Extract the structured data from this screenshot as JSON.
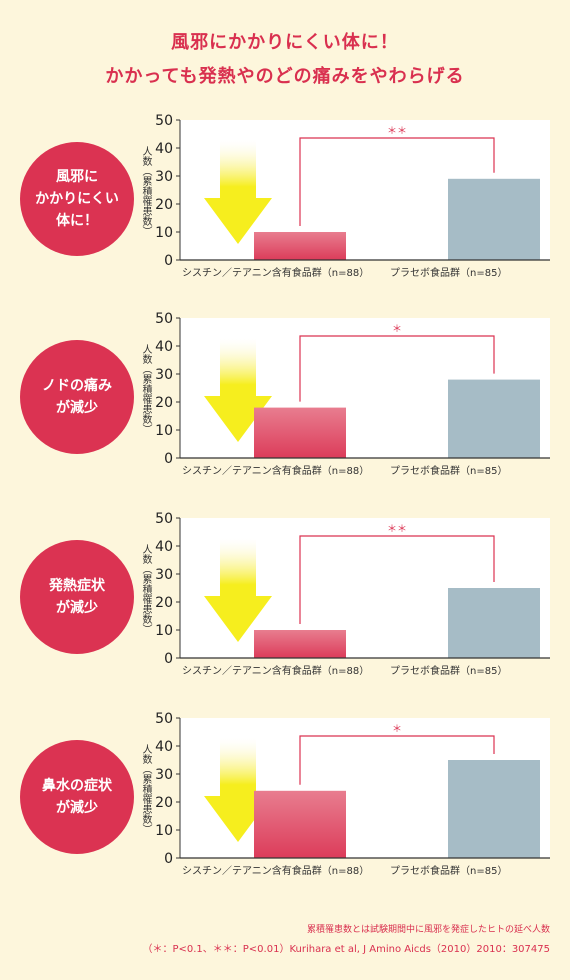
{
  "heading": {
    "line1": "風邪にかかりにくい体に！",
    "line2": "かかっても発熱やのどの痛みをやわらげる"
  },
  "colors": {
    "accent": "#db3352",
    "test_bar": "#dc3c5a",
    "placebo_bar": "#a6bcc6",
    "arrow": "#f6ee1e",
    "background": "#fdf6dc"
  },
  "chart_data": [
    {
      "type": "bar",
      "panel_label": "風邪に\nかかりにくい\n体に！",
      "ylabel": "人数（累積罹患数）",
      "categories": [
        "シスチン／テアニン含有食品群（n=88）",
        "プラセボ食品群（n=85）"
      ],
      "values": [
        10,
        29
      ],
      "ylim": [
        0,
        50
      ],
      "yticks": [
        "0",
        "10",
        "20",
        "30",
        "40",
        "50"
      ],
      "significance": "＊＊"
    },
    {
      "type": "bar",
      "panel_label": "ノドの痛み\nが減少",
      "ylabel": "人数（累積罹患数）",
      "categories": [
        "シスチン／テアニン含有食品群（n=88）",
        "プラセボ食品群（n=85）"
      ],
      "values": [
        18,
        28
      ],
      "ylim": [
        0,
        50
      ],
      "yticks": [
        "0",
        "10",
        "20",
        "30",
        "40",
        "50"
      ],
      "significance": "＊"
    },
    {
      "type": "bar",
      "panel_label": "発熱症状\nが減少",
      "ylabel": "人数（累積罹患数）",
      "categories": [
        "シスチン／テアニン含有食品群（n=88）",
        "プラセボ食品群（n=85）"
      ],
      "values": [
        10,
        25
      ],
      "ylim": [
        0,
        50
      ],
      "yticks": [
        "0",
        "10",
        "20",
        "30",
        "40",
        "50"
      ],
      "significance": "＊＊"
    },
    {
      "type": "bar",
      "panel_label": "鼻水の症状\nが減少",
      "ylabel": "人数（累積罹患数）",
      "categories": [
        "シスチン／テアニン含有食品群（n=88）",
        "プラセボ食品群（n=85）"
      ],
      "values": [
        24,
        35
      ],
      "ylim": [
        0,
        50
      ],
      "yticks": [
        "0",
        "10",
        "20",
        "30",
        "40",
        "50"
      ],
      "significance": "＊"
    }
  ],
  "footer": {
    "note": "累積罹患数とは試験期間中に風邪を発症したヒトの延べ人数",
    "citation": "（＊：P<0.1、＊＊：P<0.01）Kurihara et al, J Amino Aicds（2010）2010：307475"
  }
}
